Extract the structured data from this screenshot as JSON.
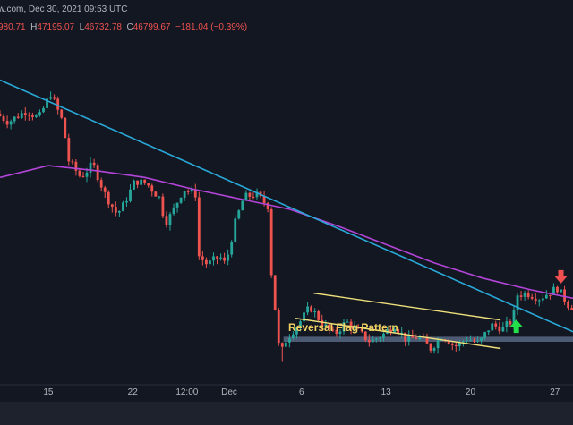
{
  "header": {
    "title": "w.com, Dec 30, 2021 09:53 UTC",
    "ohlc": [
      {
        "key": "",
        "value": "980.71"
      },
      {
        "key": "H",
        "value": "47195.07"
      },
      {
        "key": "L",
        "value": "46732.78"
      },
      {
        "key": "C",
        "value": "46799.67"
      },
      {
        "key": "",
        "value": "−181.04 (−0.39%)"
      }
    ]
  },
  "annotations": {
    "pattern_label": "Reversal Flag Pattern"
  },
  "colors": {
    "background": "#131722",
    "bull": "#26a69a",
    "bear": "#ef5350",
    "ma": "#b345d8",
    "trendline": "#2aa8d8",
    "channel": "#f0e07a",
    "support_zone": "#5c6b8a",
    "arrow_up": "#22e04a",
    "arrow_down": "#f05050"
  },
  "chart_data": {
    "type": "candlestick",
    "x_ticks": [
      {
        "t": 15,
        "label": "15"
      },
      {
        "t": 22,
        "label": "22"
      },
      {
        "t": 26.5,
        "label": "12:00"
      },
      {
        "t": 30,
        "label": "Dec"
      },
      {
        "t": 36,
        "label": "6"
      },
      {
        "t": 43,
        "label": "13"
      },
      {
        "t": 50,
        "label": "20"
      },
      {
        "t": 57,
        "label": "27"
      }
    ],
    "t_range": [
      11,
      58.5
    ],
    "y_range": [
      -1,
      1
    ],
    "price_path": [
      [
        11,
        0.6
      ],
      [
        12,
        0.55
      ],
      [
        13.5,
        0.62
      ],
      [
        14.5,
        0.57
      ],
      [
        15.5,
        0.72
      ],
      [
        16.5,
        0.55
      ],
      [
        17,
        0.32
      ],
      [
        18,
        0.22
      ],
      [
        19,
        0.3
      ],
      [
        20,
        0.12
      ],
      [
        21,
        0.0
      ],
      [
        21.5,
        0.05
      ],
      [
        22.5,
        0.2
      ],
      [
        23.5,
        0.18
      ],
      [
        24.5,
        0.1
      ],
      [
        25,
        -0.05
      ],
      [
        25.5,
        0.0
      ],
      [
        26.5,
        0.15
      ],
      [
        27.5,
        0.12
      ],
      [
        27.8,
        -0.25
      ],
      [
        28.5,
        -0.3
      ],
      [
        29.5,
        -0.25
      ],
      [
        30,
        -0.3
      ],
      [
        30.8,
        -0.05
      ],
      [
        31.5,
        0.1
      ],
      [
        32.5,
        0.12
      ],
      [
        33.5,
        0.05
      ],
      [
        33.8,
        -0.35
      ],
      [
        34.5,
        -0.85
      ],
      [
        35,
        -0.75
      ],
      [
        35.5,
        -0.7
      ],
      [
        36,
        -0.66
      ],
      [
        37,
        -0.55
      ],
      [
        38,
        -0.65
      ],
      [
        39,
        -0.72
      ],
      [
        40,
        -0.64
      ],
      [
        41,
        -0.7
      ],
      [
        42,
        -0.76
      ],
      [
        43,
        -0.72
      ],
      [
        44,
        -0.66
      ],
      [
        45,
        -0.75
      ],
      [
        46,
        -0.73
      ],
      [
        47,
        -0.8
      ],
      [
        48,
        -0.72
      ],
      [
        49,
        -0.79
      ],
      [
        50,
        -0.74
      ],
      [
        51,
        -0.77
      ],
      [
        52,
        -0.66
      ],
      [
        53,
        -0.68
      ],
      [
        53.8,
        -0.63
      ],
      [
        54.2,
        -0.48
      ],
      [
        55,
        -0.47
      ],
      [
        56,
        -0.5
      ],
      [
        57,
        -0.46
      ],
      [
        57.5,
        -0.44
      ],
      [
        58.5,
        -0.55
      ]
    ],
    "moving_average": {
      "points": [
        [
          11,
          0.22
        ],
        [
          15,
          0.29
        ],
        [
          19,
          0.26
        ],
        [
          23,
          0.22
        ],
        [
          27,
          0.15
        ],
        [
          31,
          0.09
        ],
        [
          35,
          0.03
        ],
        [
          39,
          -0.07
        ],
        [
          43,
          -0.18
        ],
        [
          47,
          -0.29
        ],
        [
          51,
          -0.38
        ],
        [
          55,
          -0.45
        ],
        [
          58.5,
          -0.5
        ]
      ]
    },
    "trendline": {
      "from": [
        11,
        0.8
      ],
      "to": [
        58.5,
        -0.7
      ]
    },
    "channel": {
      "upper": {
        "from": [
          37,
          -0.47
        ],
        "to": [
          52.5,
          -0.63
        ]
      },
      "lower": {
        "from": [
          35.5,
          -0.62
        ],
        "to": [
          52.5,
          -0.8
        ]
      }
    },
    "support_zone": {
      "from_t": 34.5,
      "to_t": 58.5,
      "y_top": -0.73,
      "y_bottom": -0.76
    },
    "markers": [
      {
        "type": "arrow-up",
        "t": 53.8,
        "y": -0.67
      },
      {
        "type": "arrow-down",
        "t": 57.5,
        "y": -0.37
      }
    ]
  }
}
